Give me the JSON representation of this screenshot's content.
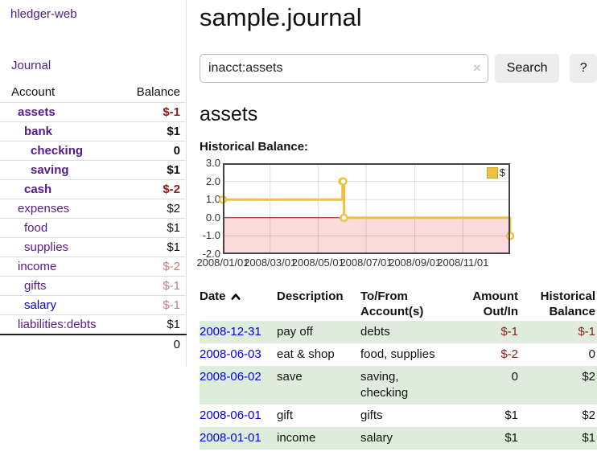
{
  "colors": {
    "link_purple": "#551a8b",
    "link_blue": "#0000ee",
    "negative": "#8f1a1a",
    "negative_dim": "#c08080",
    "row_stripe_green": "#deeddb",
    "series_yellow": "#edc240",
    "negative_region_pink": "#fadada",
    "zero_line_red": "#a00000"
  },
  "sidebar": {
    "app_title": "hledger-web",
    "nav": {
      "journal_label": "Journal"
    },
    "accounts_table": {
      "headers": {
        "account": "Account",
        "balance": "Balance"
      },
      "rows": [
        {
          "name": "assets",
          "balance": "$-1",
          "level": 1,
          "matched": true,
          "balance_style": "neg",
          "link_color": "purple"
        },
        {
          "name": "bank",
          "balance": "$1",
          "level": 2,
          "matched": true,
          "balance_style": "normal",
          "link_color": "purple"
        },
        {
          "name": "checking",
          "balance": "0",
          "level": 3,
          "matched": true,
          "balance_style": "normal",
          "link_color": "purple"
        },
        {
          "name": "saving",
          "balance": "$1",
          "level": 3,
          "matched": true,
          "balance_style": "normal",
          "link_color": "purple"
        },
        {
          "name": "cash",
          "balance": "$-2",
          "level": 2,
          "matched": true,
          "balance_style": "neg",
          "link_color": "purple"
        },
        {
          "name": "expenses",
          "balance": "$2",
          "level": 1,
          "matched": false,
          "balance_style": "normal",
          "link_color": "purple"
        },
        {
          "name": "food",
          "balance": "$1",
          "level": 2,
          "matched": false,
          "balance_style": "normal",
          "link_color": "purple"
        },
        {
          "name": "supplies",
          "balance": "$1",
          "level": 2,
          "matched": false,
          "balance_style": "normal",
          "link_color": "purple"
        },
        {
          "name": "income",
          "balance": "$-2",
          "level": 1,
          "matched": false,
          "balance_style": "negdim",
          "link_color": "purple"
        },
        {
          "name": "gifts",
          "balance": "$-1",
          "level": 2,
          "matched": false,
          "balance_style": "negdim",
          "link_color": "purple"
        },
        {
          "name": "salary",
          "balance": "$-1",
          "level": 2,
          "matched": false,
          "balance_style": "negdim",
          "link_color": "blue"
        },
        {
          "name": "liabilities:debts",
          "balance": "$1",
          "level": 1,
          "matched": false,
          "balance_style": "normal",
          "link_color": "purple"
        }
      ],
      "total": "0"
    }
  },
  "header": {
    "title": "sample.journal"
  },
  "search": {
    "value": "inacct:assets",
    "clear_icon": "×",
    "search_label": "Search",
    "help_label": "?"
  },
  "account_page": {
    "heading": "assets",
    "chart_label": "Historical Balance:"
  },
  "chart_data": {
    "type": "line",
    "title": "Historical Balance",
    "steps": true,
    "markers": true,
    "series": [
      {
        "name": "$",
        "color": "#edc240",
        "points": [
          {
            "date": "2008-01-01",
            "value": 1
          },
          {
            "date": "2008-06-01",
            "value": 2
          },
          {
            "date": "2008-06-02",
            "value": 2
          },
          {
            "date": "2008-06-03",
            "value": 0
          },
          {
            "date": "2008-12-31",
            "value": -1
          }
        ]
      }
    ],
    "x_start": "2008-01-01",
    "x_range_days": 365,
    "x_ticks": [
      {
        "label": "2008/01/01",
        "date": "2008-01-01"
      },
      {
        "label": "2008/03/01",
        "date": "2008-03-01"
      },
      {
        "label": "2008/05/01",
        "date": "2008-05-01"
      },
      {
        "label": "2008/07/01",
        "date": "2008-07-01"
      },
      {
        "label": "2008/09/01",
        "date": "2008-09-01"
      },
      {
        "label": "2008/11/01",
        "date": "2008-11-01"
      }
    ],
    "y_ticks": [
      "3.0",
      "2.0",
      "1.0",
      "0.0",
      "-1.0",
      "-2.0"
    ],
    "ylim": [
      -2,
      3
    ],
    "grid": true,
    "legend": {
      "label": "$",
      "position": "top-right"
    },
    "negative_region_shaded": true
  },
  "register_table": {
    "headers": {
      "date": "Date",
      "description": "Description",
      "accounts": "To/From Account(s)",
      "amount": "Amount Out/In",
      "balance": "Historical Balance"
    },
    "sort": {
      "column": "date",
      "direction": "ascending",
      "icon": "chevron-up"
    },
    "rows": [
      {
        "date": "2008-12-31",
        "description": "pay off",
        "accounts": "debts",
        "amount": "$-1",
        "amount_negative": true,
        "balance": "$-1",
        "balance_negative": true,
        "striped": true
      },
      {
        "date": "2008-06-03",
        "description": "eat & shop",
        "accounts": "food, supplies",
        "amount": "$-2",
        "amount_negative": true,
        "balance": "0",
        "balance_negative": false,
        "striped": false
      },
      {
        "date": "2008-06-02",
        "description": "save",
        "accounts": "saving, checking",
        "amount": "0",
        "amount_negative": false,
        "balance": "$2",
        "balance_negative": false,
        "striped": true
      },
      {
        "date": "2008-06-01",
        "description": "gift",
        "accounts": "gifts",
        "amount": "$1",
        "amount_negative": false,
        "balance": "$2",
        "balance_negative": false,
        "striped": false
      },
      {
        "date": "2008-01-01",
        "description": "income",
        "accounts": "salary",
        "amount": "$1",
        "amount_negative": false,
        "balance": "$1",
        "balance_negative": false,
        "striped": true
      }
    ]
  }
}
